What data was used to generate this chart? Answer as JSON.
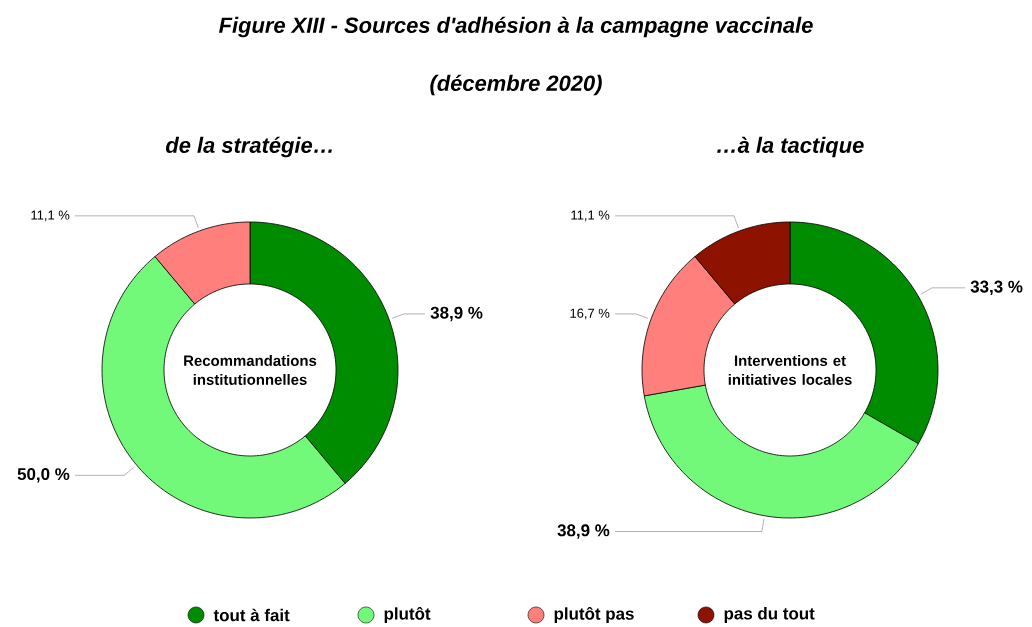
{
  "chart_data": [
    {
      "type": "other",
      "title": "Figure XIII - Sources d'adhésion à la campagne vaccinale",
      "subtitle": "(décembre 2020)"
    },
    {
      "type": "donut",
      "title": "de la stratégie…",
      "annotations": [
        "Recommandations institutionnelles"
      ],
      "categories": [
        null,
        null,
        null
      ],
      "values": [
        38.9,
        50.0,
        11.1
      ],
      "value_labels": [
        "38,9 %",
        "50,0 %",
        "11,1 %"
      ],
      "colors": [
        "#008c00",
        "#73f97a",
        "#fe7f7b"
      ]
    },
    {
      "type": "donut",
      "title": "…à la tactique",
      "annotations": [
        "Interventions et initiatives locales"
      ],
      "categories": [
        "tout à fait",
        "plutôt",
        "plutôt pas",
        "pas du tout"
      ],
      "values": [
        33.3,
        38.9,
        16.7,
        11.1
      ],
      "value_labels": [
        "33,3 %",
        "38,9 %",
        "16,7 %",
        "11,1 %"
      ],
      "colors": [
        "#008c00",
        "#73f97a",
        "#fe7f7b",
        "#8d1300"
      ],
      "legend": "bottom"
    }
  ]
}
